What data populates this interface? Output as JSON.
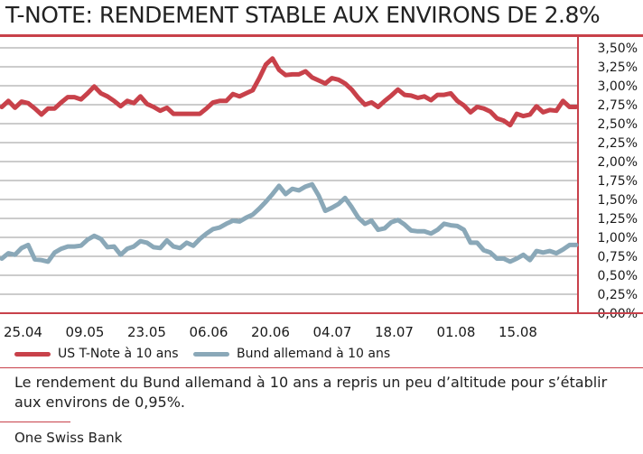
{
  "title": "T-NOTE: RENDEMENT STABLE AUX ENVIRONS DE 2.8%",
  "caption": "Le rendement du Bund allemand à 10 ans a repris un peu d’altitude pour s’établir aux environs de 0,95%.",
  "source": "One Swiss Bank",
  "colors": {
    "accent": "#c8414a",
    "tnote": "#c8414a",
    "bund": "#8aa8b8"
  },
  "chart_data": {
    "type": "line",
    "title": "T-NOTE: RENDEMENT STABLE AUX ENVIRONS DE 2.8%",
    "xlabel": "",
    "ylabel": "",
    "ylim": [
      0,
      3.5
    ],
    "y_ticks": [
      "0,00%",
      "0,25%",
      "0,50%",
      "0,75%",
      "1,00%",
      "1,25%",
      "1,50%",
      "1,75%",
      "2,00%",
      "2,25%",
      "2,50%",
      "2,75%",
      "3,00%",
      "3,25%",
      "3,50%"
    ],
    "x_ticks": [
      "25.04",
      "09.05",
      "23.05",
      "06.06",
      "20.06",
      "04.07",
      "18.07",
      "01.08",
      "15.08"
    ],
    "grid": true,
    "legend_position": "bottom",
    "series": [
      {
        "name": "US T-Note à 10 ans",
        "color": "#c8414a",
        "values": [
          2.72,
          2.8,
          2.71,
          2.79,
          2.77,
          2.7,
          2.62,
          2.7,
          2.7,
          2.78,
          2.85,
          2.85,
          2.82,
          2.9,
          2.99,
          2.9,
          2.86,
          2.8,
          2.73,
          2.8,
          2.77,
          2.86,
          2.76,
          2.72,
          2.67,
          2.71,
          2.63,
          2.63,
          2.63,
          2.63,
          2.63,
          2.7,
          2.78,
          2.8,
          2.8,
          2.89,
          2.86,
          2.9,
          2.94,
          3.1,
          3.28,
          3.36,
          3.21,
          3.14,
          3.15,
          3.15,
          3.19,
          3.11,
          3.07,
          3.03,
          3.1,
          3.08,
          3.03,
          2.95,
          2.84,
          2.75,
          2.78,
          2.72,
          2.8,
          2.87,
          2.95,
          2.88,
          2.87,
          2.84,
          2.86,
          2.81,
          2.88,
          2.88,
          2.9,
          2.8,
          2.74,
          2.65,
          2.72,
          2.7,
          2.66,
          2.57,
          2.54,
          2.48,
          2.63,
          2.6,
          2.62,
          2.73,
          2.65,
          2.68,
          2.67,
          2.8,
          2.72,
          2.72
        ]
      },
      {
        "name": "Bund allemand à 10 ans",
        "color": "#8aa8b8",
        "values": [
          0.72,
          0.79,
          0.77,
          0.86,
          0.9,
          0.71,
          0.7,
          0.68,
          0.8,
          0.85,
          0.88,
          0.88,
          0.89,
          0.97,
          1.02,
          0.98,
          0.87,
          0.88,
          0.77,
          0.85,
          0.88,
          0.95,
          0.93,
          0.87,
          0.86,
          0.96,
          0.88,
          0.86,
          0.93,
          0.89,
          0.98,
          1.05,
          1.11,
          1.13,
          1.18,
          1.22,
          1.21,
          1.26,
          1.3,
          1.38,
          1.47,
          1.57,
          1.68,
          1.57,
          1.64,
          1.62,
          1.67,
          1.7,
          1.55,
          1.35,
          1.39,
          1.44,
          1.52,
          1.4,
          1.26,
          1.18,
          1.22,
          1.1,
          1.12,
          1.2,
          1.23,
          1.17,
          1.09,
          1.08,
          1.08,
          1.05,
          1.1,
          1.18,
          1.16,
          1.15,
          1.1,
          0.93,
          0.93,
          0.83,
          0.8,
          0.72,
          0.72,
          0.68,
          0.72,
          0.77,
          0.7,
          0.82,
          0.8,
          0.82,
          0.79,
          0.84,
          0.9,
          0.9
        ]
      }
    ]
  }
}
